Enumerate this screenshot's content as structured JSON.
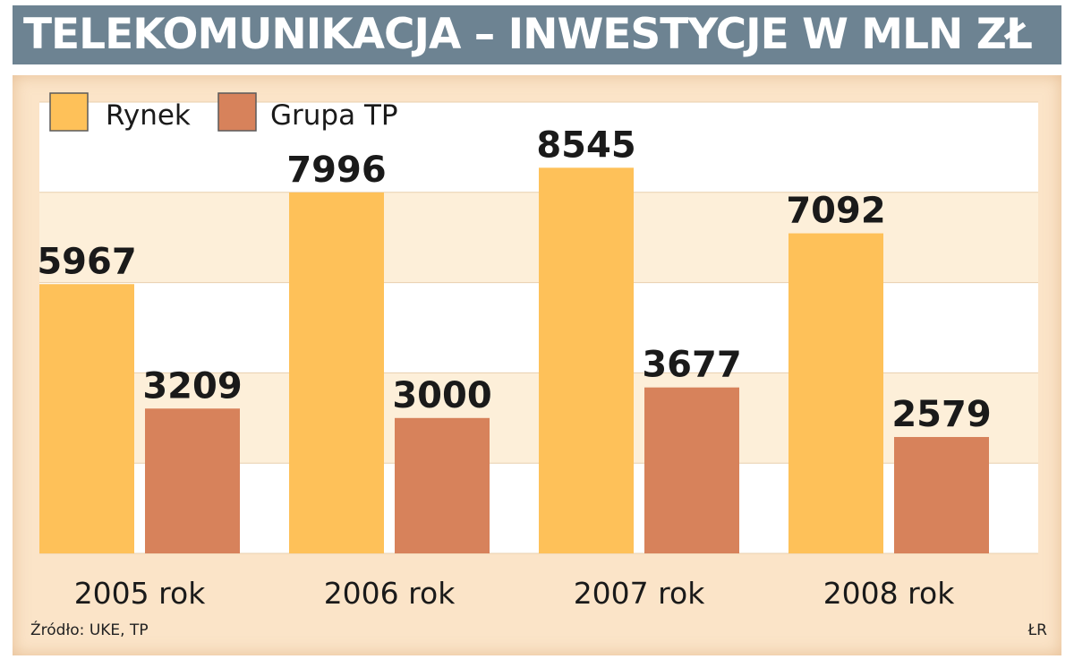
{
  "title": "TELEKOMUNIKACJA – INWESTYCJE W MLN ZŁ",
  "source": "Źródło: UKE, TP",
  "credit": "ŁR",
  "colors": {
    "title_bg": "#6d8392",
    "panel_bg": "#fbe4c8",
    "plot_bg": "#ffffff",
    "grid_band": "#fdefd9",
    "rynek": "#fec159",
    "grupa_tp": "#d7825b"
  },
  "chart_data": {
    "type": "bar",
    "title": "TELEKOMUNIKACJA – INWESTYCJE W MLN ZŁ",
    "categories": [
      "2005 rok",
      "2006 rok",
      "2007 rok",
      "2008 rok"
    ],
    "series": [
      {
        "name": "Rynek",
        "values": [
          5967,
          7996,
          8545,
          7092
        ]
      },
      {
        "name": "Grupa TP",
        "values": [
          3209,
          3000,
          3677,
          2579
        ]
      }
    ],
    "ylim": [
      0,
      10000
    ],
    "grid": true,
    "legend_position": "top-left",
    "data_labels": true
  }
}
